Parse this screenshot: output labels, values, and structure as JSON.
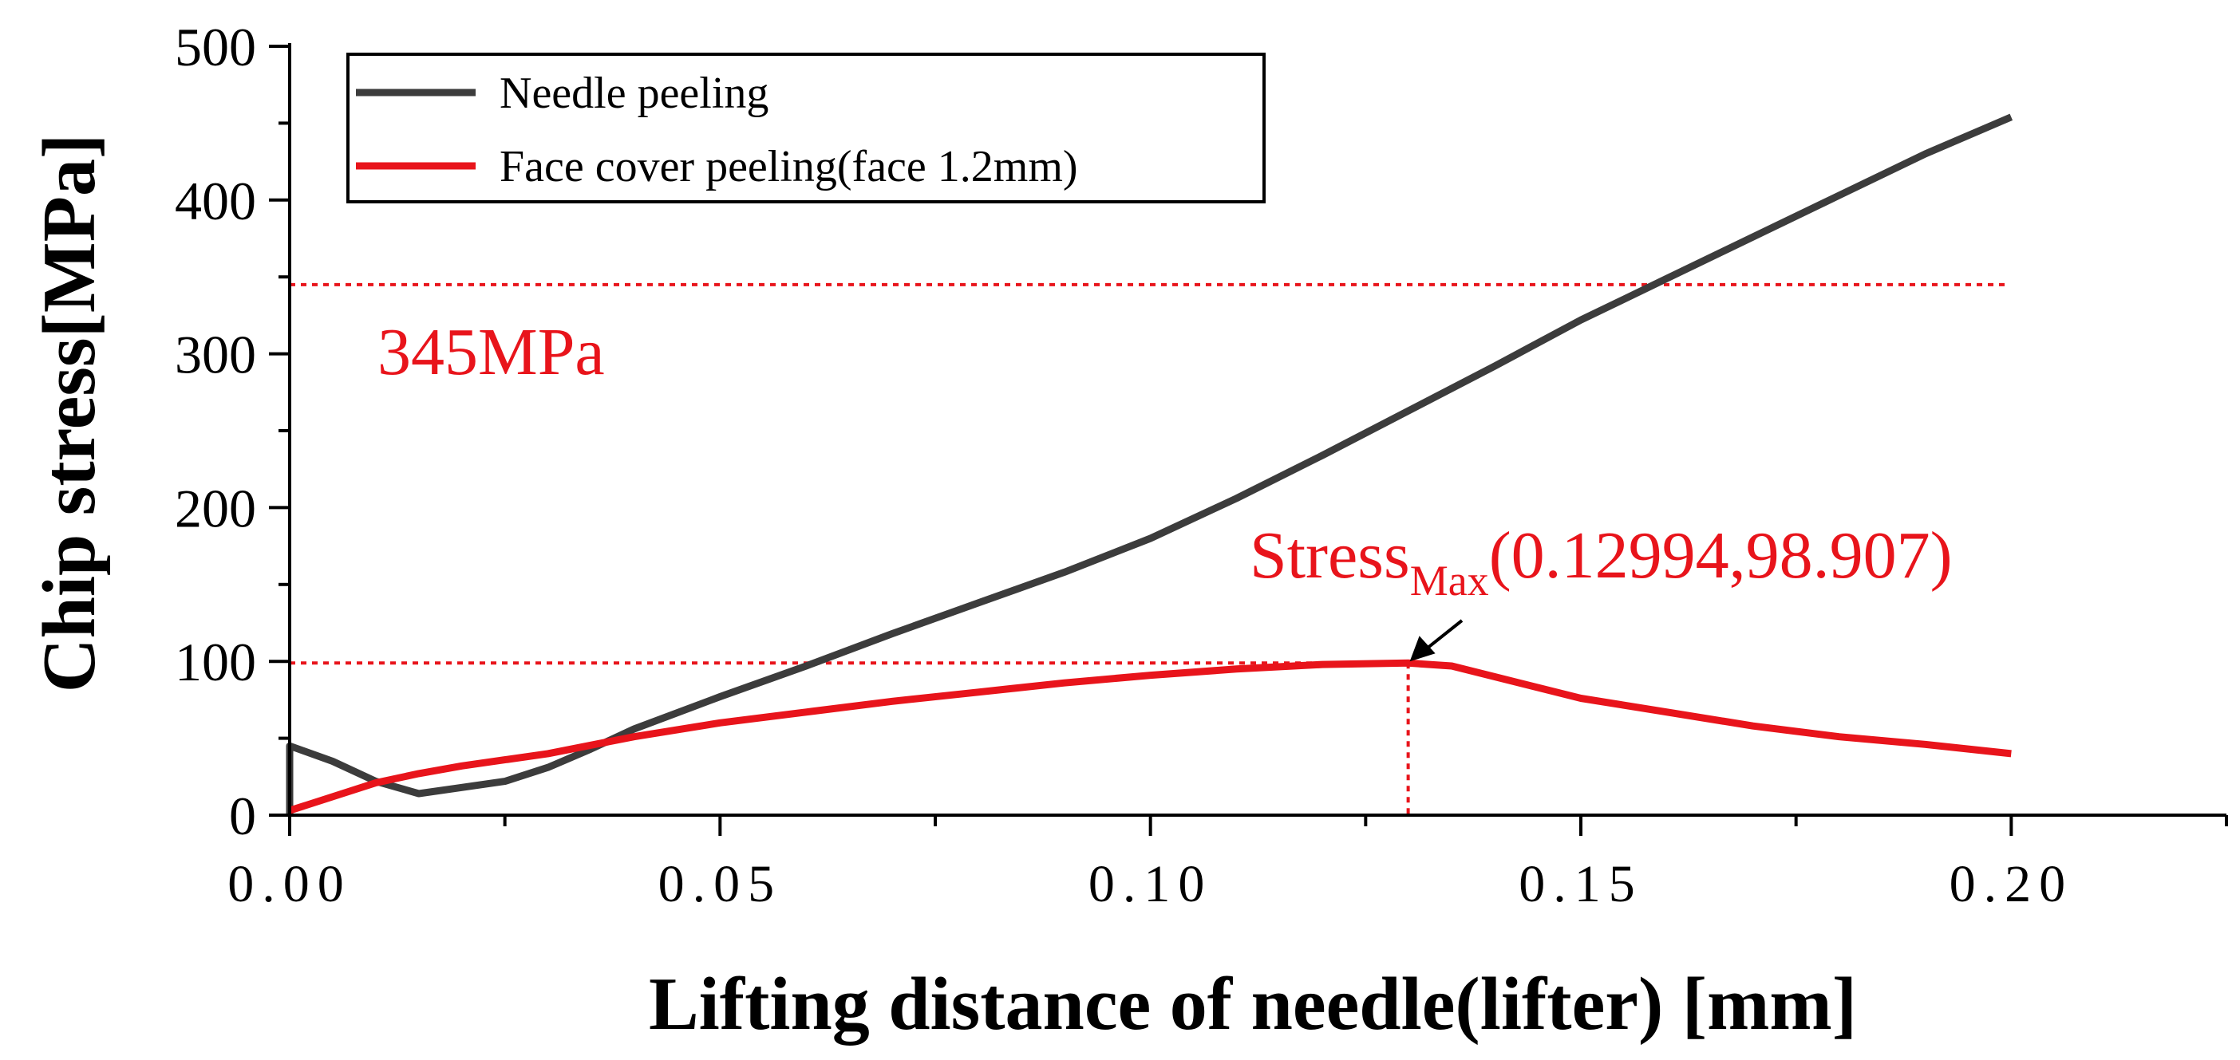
{
  "chart_data": {
    "type": "line",
    "title": "",
    "xlabel": "Lifting distance of needle(lifter) [mm]",
    "ylabel": "Chip stress[MPa]",
    "xlim": [
      0,
      0.225
    ],
    "ylim": [
      0,
      500
    ],
    "x_ticks": [
      0.0,
      0.05,
      0.1,
      0.15,
      0.2
    ],
    "x_tick_labels": [
      "0.00",
      "0.05",
      "0.10",
      "0.15",
      "0.20"
    ],
    "y_ticks": [
      0,
      100,
      200,
      300,
      400,
      500
    ],
    "y_tick_labels": [
      "0",
      "100",
      "200",
      "300",
      "400",
      "500"
    ],
    "grid": false,
    "legend_position": "top-left",
    "series": [
      {
        "name": "Needle peeling",
        "color": "#3c3c3c",
        "x": [
          0.0,
          0.0,
          0.005,
          0.01,
          0.015,
          0.02,
          0.025,
          0.03,
          0.035,
          0.04,
          0.05,
          0.06,
          0.07,
          0.08,
          0.09,
          0.1,
          0.11,
          0.12,
          0.13,
          0.14,
          0.15,
          0.16,
          0.17,
          0.18,
          0.19,
          0.2
        ],
        "y": [
          0,
          45,
          35,
          22,
          14,
          18,
          22,
          31,
          43,
          56,
          77,
          97,
          118,
          138,
          158,
          180,
          206,
          234,
          263,
          292,
          322,
          349,
          376,
          403,
          430,
          454
        ]
      },
      {
        "name": "Face cover peeling(face 1.2mm)",
        "color": "#e8141b",
        "x": [
          0.0,
          0.005,
          0.01,
          0.015,
          0.02,
          0.025,
          0.03,
          0.04,
          0.05,
          0.06,
          0.07,
          0.08,
          0.09,
          0.1,
          0.11,
          0.12,
          0.12994,
          0.135,
          0.14,
          0.15,
          0.16,
          0.17,
          0.18,
          0.19,
          0.2
        ],
        "y": [
          3,
          12,
          21,
          27,
          32,
          36,
          40,
          51,
          60,
          67,
          74,
          80,
          86,
          91,
          95,
          98,
          98.907,
          97,
          90,
          76,
          67,
          58,
          51,
          46,
          40
        ]
      }
    ],
    "reference_lines": [
      {
        "axis": "y",
        "value": 345,
        "label": "345MPa",
        "color": "#e8141b",
        "style": "dotted"
      },
      {
        "axis": "y",
        "value": 98.907,
        "color": "#e8141b",
        "style": "dotted"
      },
      {
        "axis": "x",
        "value": 0.12994,
        "color": "#e8141b",
        "style": "dotted"
      }
    ],
    "annotations": [
      {
        "text_main": "Stress",
        "text_sub": "Max",
        "text_tail": "(0.12994,98.907)",
        "x": 0.12994,
        "y": 98.907,
        "color": "#e8141b"
      }
    ]
  }
}
